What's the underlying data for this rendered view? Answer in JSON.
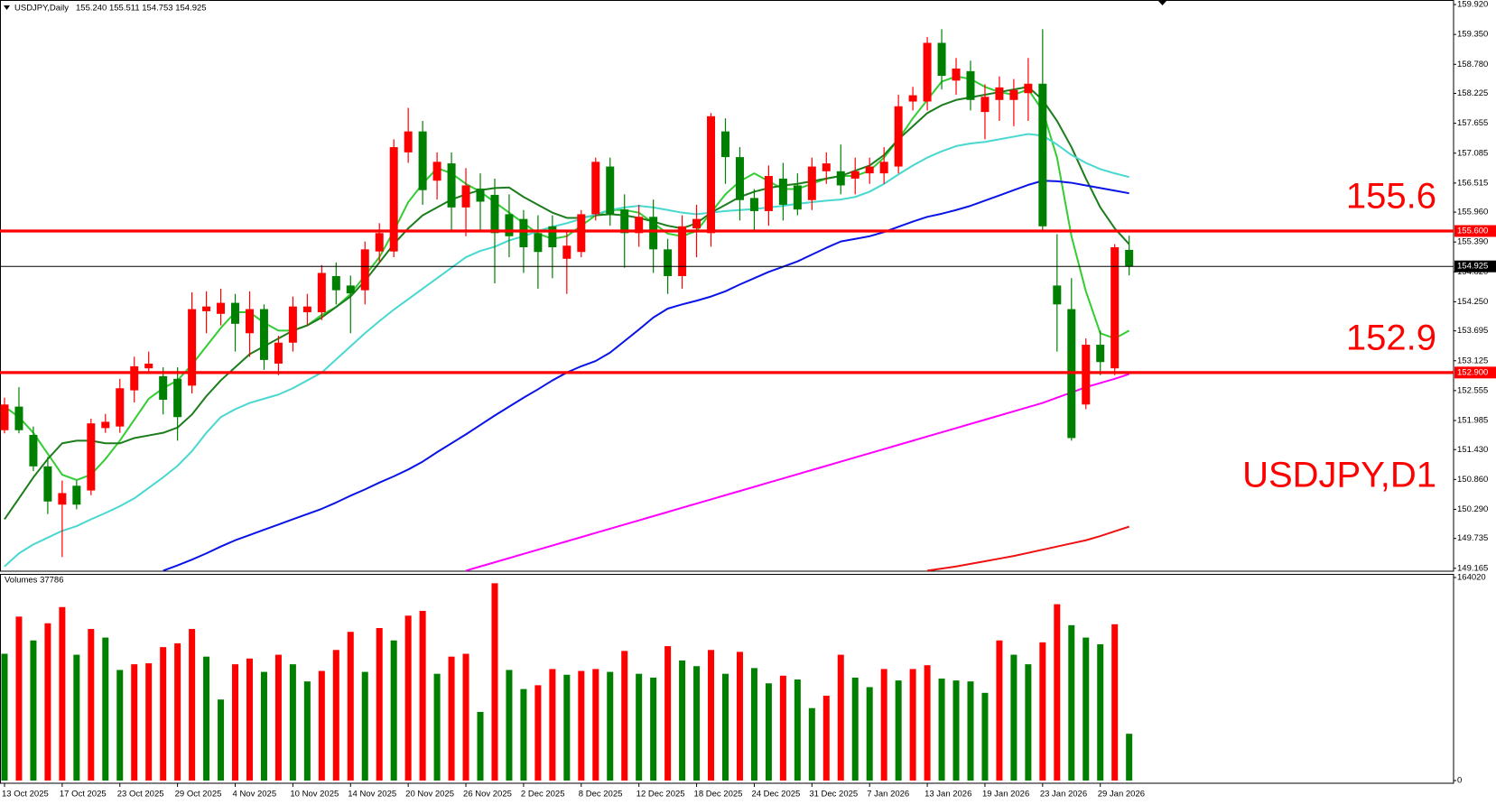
{
  "chart_data": [
    {
      "type": "candlestick",
      "symbol": "USDJPY,Daily",
      "ohlc_text": "155.240 155.511 154.753 154.925",
      "watermark": "USDJPY,D1",
      "categories": [
        "13 Oct 2025",
        null,
        null,
        null,
        "17 Oct 2025",
        null,
        null,
        null,
        "23 Oct 2025",
        null,
        null,
        null,
        "29 Oct 2025",
        null,
        null,
        null,
        "4 Nov 2025",
        null,
        null,
        null,
        "10 Nov 2025",
        null,
        null,
        null,
        "14 Nov 2025",
        null,
        null,
        null,
        "20 Nov 2025",
        null,
        null,
        null,
        "26 Nov 2025",
        null,
        null,
        null,
        "2 Dec 2025",
        null,
        null,
        null,
        "8 Dec 2025",
        null,
        null,
        null,
        "12 Dec 2025",
        null,
        null,
        null,
        "18 Dec 2025",
        null,
        null,
        null,
        "24 Dec 2025",
        null,
        null,
        null,
        "31 Dec 2025",
        null,
        null,
        null,
        "7 Jan 2026",
        null,
        null,
        null,
        "13 Jan 2026",
        null,
        null,
        null,
        "19 Jan 2026",
        null,
        null,
        null,
        "23 Jan 2026",
        null,
        null,
        null,
        "29 Jan 2026",
        null,
        null
      ],
      "open": [
        151.8,
        152.25,
        151.71,
        151.11,
        150.38,
        150.74,
        150.65,
        151.84,
        151.87,
        152.56,
        152.98,
        152.83,
        152.78,
        152.65,
        154.07,
        154.02,
        154.23,
        153.65,
        154.11,
        153.07,
        153.47,
        154.05,
        154.05,
        154.74,
        154.56,
        154.47,
        155.21,
        155.21,
        157.1,
        157.5,
        156.56,
        156.89,
        156.05,
        156.41,
        156.29,
        155.92,
        155.83,
        155.56,
        155.69,
        155.07,
        155.2,
        155.92,
        156.83,
        156.01,
        155.56,
        155.87,
        155.25,
        154.74,
        155.65,
        155.56,
        157.5,
        157.01,
        156.23,
        155.98,
        156.6,
        156.47,
        156.19,
        156.74,
        156.74,
        156.6,
        156.7,
        156.7,
        156.83,
        158.07,
        158.07,
        159.19,
        158.47,
        158.65,
        157.87,
        158.1,
        158.1,
        158.23,
        158.41,
        154.56,
        154.11,
        152.29,
        153.43,
        152.98,
        155.24
      ],
      "high": [
        152.42,
        152.62,
        151.87,
        151.29,
        150.84,
        150.84,
        152.02,
        152.11,
        152.78,
        153.2,
        153.3,
        153.0,
        153.0,
        154.43,
        154.45,
        154.5,
        154.4,
        154.45,
        154.2,
        153.6,
        154.35,
        154.4,
        154.95,
        155.0,
        154.75,
        155.4,
        155.75,
        157.35,
        157.95,
        157.7,
        157.1,
        157.1,
        156.8,
        156.7,
        156.6,
        156.3,
        156.0,
        155.9,
        155.9,
        155.6,
        156.0,
        157.0,
        157.0,
        156.3,
        156.1,
        156.2,
        155.45,
        155.9,
        156.1,
        157.85,
        157.75,
        157.2,
        156.4,
        156.85,
        156.9,
        156.7,
        157.0,
        157.1,
        157.25,
        157.0,
        157.0,
        157.2,
        158.2,
        158.35,
        159.3,
        159.45,
        158.9,
        158.85,
        158.4,
        158.55,
        158.5,
        158.9,
        159.45,
        155.54,
        154.7,
        153.55,
        153.7,
        155.35,
        155.511
      ],
      "low": [
        151.74,
        151.74,
        151.02,
        150.2,
        149.38,
        150.29,
        150.56,
        151.75,
        151.75,
        152.33,
        152.9,
        152.1,
        151.6,
        152.5,
        153.65,
        153.8,
        153.3,
        153.2,
        152.95,
        152.85,
        153.3,
        153.8,
        153.9,
        154.2,
        153.65,
        154.2,
        155.0,
        155.1,
        156.9,
        156.1,
        156.2,
        155.6,
        155.5,
        155.6,
        154.6,
        155.1,
        154.8,
        154.5,
        154.7,
        154.4,
        155.1,
        155.8,
        155.7,
        154.9,
        155.3,
        154.8,
        154.4,
        154.5,
        155.1,
        155.3,
        156.5,
        155.8,
        155.6,
        155.7,
        155.8,
        155.9,
        156.0,
        156.5,
        156.3,
        156.3,
        156.5,
        156.5,
        156.7,
        157.9,
        157.9,
        158.3,
        158.2,
        157.9,
        157.35,
        157.7,
        157.6,
        157.7,
        155.6,
        153.3,
        151.6,
        152.2,
        152.85,
        152.85,
        154.753
      ],
      "close": [
        152.29,
        151.8,
        151.11,
        150.44,
        150.6,
        150.38,
        151.93,
        151.96,
        152.6,
        153.02,
        153.07,
        152.38,
        152.05,
        154.11,
        154.16,
        154.23,
        153.83,
        154.11,
        153.14,
        153.47,
        154.16,
        154.16,
        154.8,
        154.47,
        154.41,
        155.25,
        155.56,
        157.2,
        157.5,
        156.38,
        156.92,
        156.05,
        156.47,
        156.16,
        155.56,
        155.5,
        155.29,
        155.2,
        155.29,
        155.32,
        155.92,
        156.92,
        155.92,
        155.56,
        155.87,
        155.25,
        154.74,
        155.69,
        155.83,
        157.79,
        157.01,
        156.19,
        155.98,
        156.65,
        156.1,
        156.01,
        156.83,
        156.89,
        156.47,
        156.74,
        156.83,
        156.92,
        157.98,
        158.19,
        159.19,
        158.56,
        158.7,
        158.1,
        158.16,
        158.34,
        158.29,
        158.41,
        155.69,
        154.2,
        151.65,
        153.43,
        153.1,
        155.29,
        154.925
      ],
      "up_color": "#ff0000",
      "down_color": "#008000",
      "series": [
        {
          "color": "#32cd32",
          "values": [
            152.25,
            152.05,
            151.75,
            151.35,
            150.95,
            150.85,
            150.95,
            151.25,
            151.6,
            152.0,
            152.4,
            152.6,
            152.75,
            153.05,
            153.4,
            153.75,
            154.05,
            154.05,
            153.85,
            153.7,
            153.7,
            153.8,
            154.0,
            154.15,
            154.4,
            154.75,
            155.1,
            155.6,
            156.15,
            156.5,
            156.8,
            156.7,
            156.5,
            156.35,
            156.15,
            155.95,
            155.75,
            155.55,
            155.45,
            155.5,
            155.7,
            155.9,
            156.0,
            156.0,
            155.95,
            155.75,
            155.55,
            155.5,
            155.6,
            155.95,
            156.3,
            156.55,
            156.7,
            156.55,
            156.4,
            156.4,
            156.5,
            156.6,
            156.65,
            156.65,
            156.75,
            157.0,
            157.35,
            157.75,
            158.1,
            158.45,
            158.55,
            158.5,
            158.35,
            158.25,
            158.2,
            158.3,
            157.9,
            157.0,
            155.5,
            154.45,
            153.65,
            153.55,
            153.7
          ]
        },
        {
          "color": "#1b7d1b",
          "values": [
            150.1,
            150.5,
            150.9,
            151.25,
            151.55,
            151.6,
            151.6,
            151.55,
            151.55,
            151.65,
            151.7,
            151.75,
            151.85,
            152.1,
            152.45,
            152.75,
            153.0,
            153.25,
            153.4,
            153.55,
            153.7,
            153.8,
            153.95,
            154.15,
            154.35,
            154.65,
            155.0,
            155.35,
            155.65,
            155.9,
            156.05,
            156.2,
            156.3,
            156.38,
            156.42,
            156.43,
            156.25,
            156.1,
            155.95,
            155.85,
            155.85,
            155.9,
            155.92,
            155.9,
            155.85,
            155.78,
            155.7,
            155.65,
            155.75,
            155.95,
            156.1,
            156.25,
            156.35,
            156.42,
            156.47,
            156.5,
            156.55,
            156.6,
            156.65,
            156.75,
            156.85,
            157.05,
            157.35,
            157.6,
            157.85,
            158.0,
            158.1,
            158.15,
            158.2,
            158.25,
            158.3,
            158.35,
            158.1,
            157.7,
            157.2,
            156.6,
            156.05,
            155.65,
            155.35
          ]
        },
        {
          "color": "#48d8d0",
          "values": [
            149.2,
            149.45,
            149.62,
            149.75,
            149.88,
            149.97,
            150.1,
            150.22,
            150.35,
            150.5,
            150.7,
            150.9,
            151.12,
            151.4,
            151.75,
            152.05,
            152.2,
            152.32,
            152.4,
            152.48,
            152.6,
            152.75,
            152.9,
            153.15,
            153.4,
            153.65,
            153.88,
            154.1,
            154.3,
            154.5,
            154.7,
            154.9,
            155.1,
            155.22,
            155.3,
            155.42,
            155.5,
            155.6,
            155.68,
            155.75,
            155.83,
            155.92,
            156.0,
            156.05,
            156.08,
            156.05,
            156.0,
            155.95,
            155.92,
            155.95,
            155.98,
            156.0,
            156.02,
            156.05,
            156.08,
            156.12,
            156.15,
            156.18,
            156.2,
            156.25,
            156.35,
            156.5,
            156.68,
            156.85,
            157.0,
            157.12,
            157.22,
            157.27,
            157.3,
            157.35,
            157.4,
            157.45,
            157.42,
            157.25,
            157.05,
            156.9,
            156.78,
            156.7,
            156.63
          ]
        },
        {
          "color": "#0a14e6",
          "values": [
            null,
            null,
            null,
            null,
            null,
            null,
            null,
            null,
            null,
            null,
            null,
            149.12,
            149.22,
            149.33,
            149.45,
            149.58,
            149.7,
            149.8,
            149.9,
            150.0,
            150.1,
            150.2,
            150.3,
            150.42,
            150.55,
            150.67,
            150.8,
            150.92,
            151.05,
            151.2,
            151.38,
            151.55,
            151.72,
            151.9,
            152.08,
            152.25,
            152.42,
            152.58,
            152.75,
            152.9,
            153.02,
            153.12,
            153.28,
            153.5,
            153.72,
            153.95,
            154.12,
            154.2,
            154.27,
            154.35,
            154.45,
            154.58,
            154.7,
            154.82,
            154.92,
            155.02,
            155.15,
            155.28,
            155.4,
            155.45,
            155.5,
            155.58,
            155.68,
            155.78,
            155.87,
            155.93,
            156.0,
            156.08,
            156.18,
            156.28,
            156.38,
            156.48,
            156.56,
            156.55,
            156.52,
            156.47,
            156.42,
            156.37,
            156.32
          ]
        },
        {
          "color": "#ff00ff",
          "values": [
            null,
            null,
            null,
            null,
            null,
            null,
            null,
            null,
            null,
            null,
            null,
            null,
            null,
            null,
            null,
            null,
            null,
            null,
            null,
            null,
            null,
            null,
            null,
            null,
            null,
            null,
            null,
            null,
            null,
            null,
            null,
            null,
            149.12,
            149.2,
            149.28,
            149.36,
            149.44,
            149.52,
            149.6,
            149.68,
            149.76,
            149.84,
            149.92,
            150.0,
            150.08,
            150.16,
            150.24,
            150.32,
            150.4,
            150.48,
            150.56,
            150.64,
            150.72,
            150.8,
            150.88,
            150.96,
            151.04,
            151.12,
            151.2,
            151.28,
            151.36,
            151.44,
            151.52,
            151.6,
            151.68,
            151.76,
            151.84,
            151.92,
            152.0,
            152.08,
            152.16,
            152.24,
            152.32,
            152.42,
            152.52,
            152.62,
            152.7,
            152.78,
            152.87
          ]
        },
        {
          "color": "#ee1111",
          "values": [
            null,
            null,
            null,
            null,
            null,
            null,
            null,
            null,
            null,
            null,
            null,
            null,
            null,
            null,
            null,
            null,
            null,
            null,
            null,
            null,
            null,
            null,
            null,
            null,
            null,
            null,
            null,
            null,
            null,
            null,
            null,
            null,
            null,
            null,
            null,
            null,
            null,
            null,
            null,
            null,
            null,
            null,
            null,
            null,
            null,
            null,
            null,
            null,
            null,
            null,
            null,
            null,
            null,
            null,
            null,
            null,
            null,
            null,
            null,
            null,
            null,
            null,
            null,
            null,
            149.12,
            149.16,
            149.2,
            149.25,
            149.3,
            149.35,
            149.4,
            149.46,
            149.52,
            149.58,
            149.64,
            149.7,
            149.78,
            149.87,
            149.96
          ]
        }
      ],
      "levels": [
        {
          "value": 155.6,
          "tag": "155.600",
          "color": "#ff0000"
        },
        {
          "value": 152.9,
          "tag": "152.900",
          "color": "#ff0000"
        }
      ],
      "last_price": 154.925,
      "ylim": [
        149.11,
        159.99
      ],
      "yticks": [
        {
          "value": 159.92,
          "label": "159.920"
        },
        {
          "value": 159.35,
          "label": "159.350"
        },
        {
          "value": 158.78,
          "label": "158.780"
        },
        {
          "value": 158.225,
          "label": "158.225"
        },
        {
          "value": 157.655,
          "label": "157.655"
        },
        {
          "value": 157.085,
          "label": "157.085"
        },
        {
          "value": 156.515,
          "label": "156.515"
        },
        {
          "value": 155.96,
          "label": "155.960"
        },
        {
          "value": 155.39,
          "label": "155.390"
        },
        {
          "value": 154.82,
          "label": "154.820"
        },
        {
          "value": 154.25,
          "label": "154.250"
        },
        {
          "value": 153.695,
          "label": "153.695"
        },
        {
          "value": 153.125,
          "label": "153.125"
        },
        {
          "value": 152.555,
          "label": "152.555"
        },
        {
          "value": 151.985,
          "label": "151.985"
        },
        {
          "value": 151.43,
          "label": "151.430"
        },
        {
          "value": 150.86,
          "label": "150.860"
        },
        {
          "value": 150.29,
          "label": "150.290"
        },
        {
          "value": 149.735,
          "label": "149.735"
        },
        {
          "value": 149.165,
          "label": "149.165"
        }
      ],
      "grid": false
    },
    {
      "type": "bar",
      "title": "Volumes 37786",
      "values": [
        102410,
        132440,
        113190,
        127050,
        140140,
        101640,
        122430,
        115500,
        89320,
        93940,
        94710,
        107800,
        110880,
        122430,
        100100,
        65450,
        93940,
        98560,
        87780,
        101640,
        93940,
        80080,
        88550,
        105490,
        120120,
        87780,
        123200,
        113190,
        133210,
        137060,
        86240,
        100100,
        102410,
        55440,
        159390,
        89320,
        73920,
        77000,
        90090,
        85470,
        88550,
        90090,
        87780,
        104720,
        86240,
        83160,
        108570,
        97020,
        92400,
        105490,
        86240,
        103950,
        90860,
        78540,
        84700,
        81620,
        58520,
        68530,
        101640,
        83160,
        75460,
        90090,
        80850,
        90090,
        93170,
        82390,
        80850,
        80080,
        70840,
        113190,
        101640,
        93940,
        111650,
        142450,
        125510,
        115500,
        110110,
        126280,
        37786
      ],
      "up_color": "#ff0000",
      "down_color": "#008000",
      "ylim": [
        0,
        164020
      ],
      "yticks": [
        164020,
        0
      ]
    }
  ]
}
